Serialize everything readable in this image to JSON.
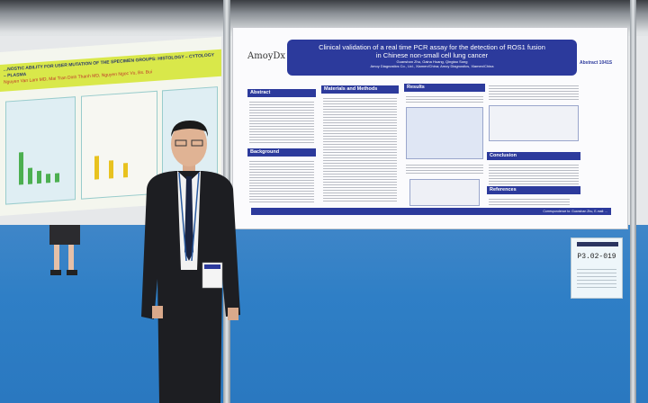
{
  "left_poster": {
    "title": "...NOSTIC ABILITY FOR USER MUTATION OF THE SPECIMEN GROUPS: HISTOLOGY – CYTOLOGY – PLASMA",
    "authors": "Nguyen Van Lam MD, Mai Tran Dinh Thanh MD, Nguyen Ngoc Vu, Bs. Bui"
  },
  "right_poster": {
    "logo": "AmoyDx",
    "title_line1": "Clinical validation of a real time PCR assay for the detection of ROS1 fusion",
    "title_line2": "in Chinese non-small cell lung cancer",
    "authors": "Guanshan Zhu, Gaina Huang, Qingtao Song",
    "affiliation": "Amoy Diagnostics Co., Ltd., Xiamen/China; Amoy Diagnostics, Xiamen/China",
    "abstract_number": "Abstract 1041S",
    "sections": {
      "abstract": "Abstract",
      "background": "Background",
      "materials": "Materials and Methods",
      "results": "Results",
      "conclusion": "Conclusion",
      "references": "References"
    },
    "footer_right": "Correspondence to: Guanshan Zhu, E-mail: ..."
  },
  "board_sign": {
    "code": "P3.02-019"
  },
  "colors": {
    "poster_blue": "#2c3a9c",
    "carpet": "#2f7fc6",
    "left_band": "#d9e84a"
  }
}
